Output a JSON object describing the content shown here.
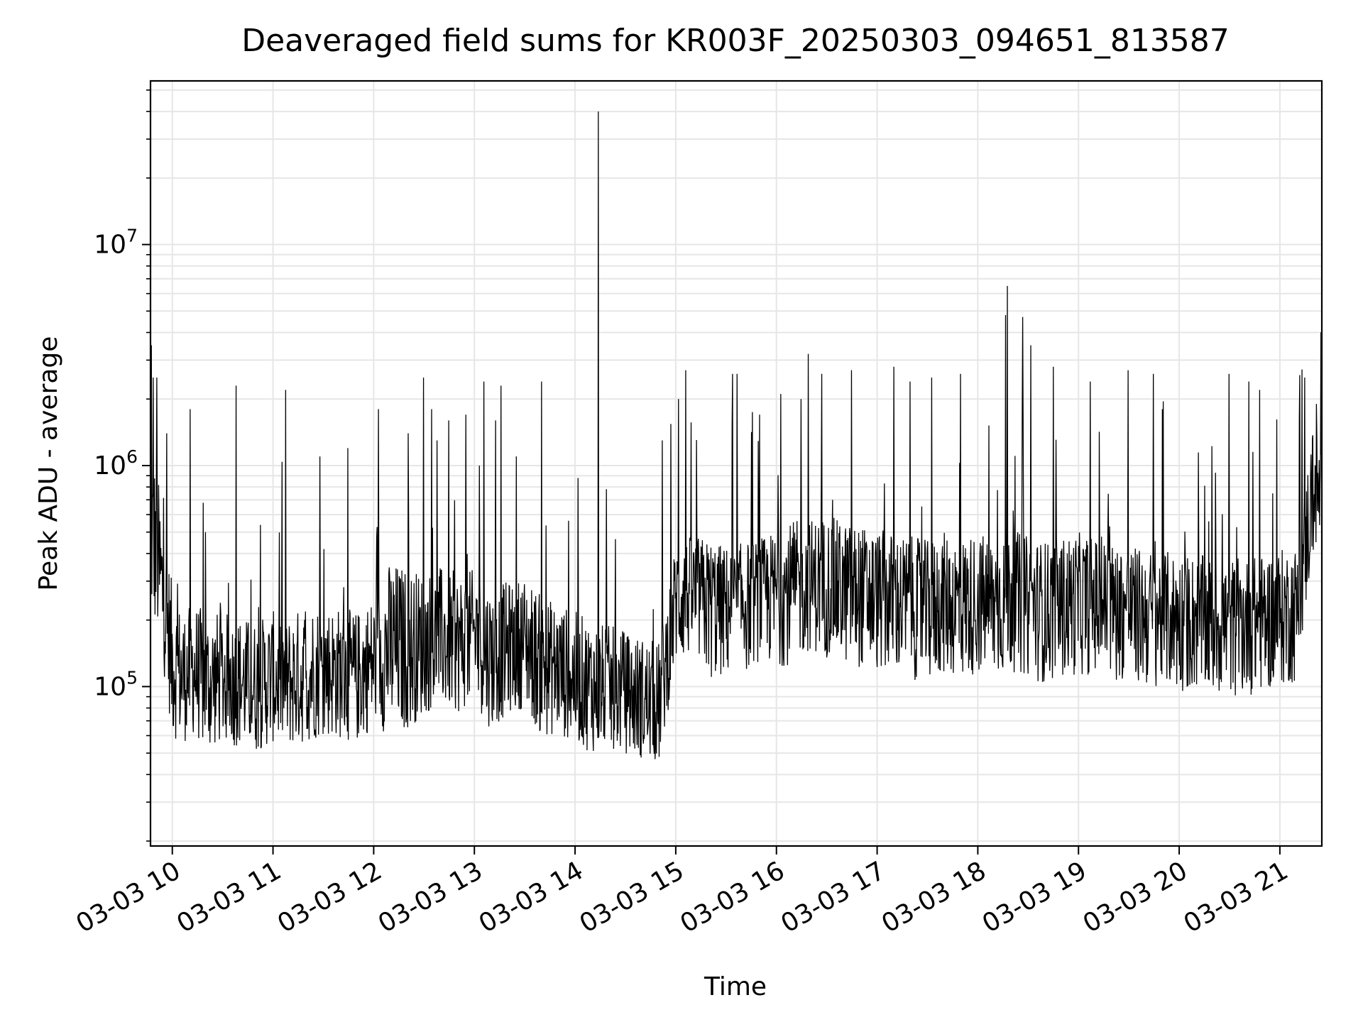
{
  "chart_data": {
    "type": "line",
    "title": "Deaveraged field sums for KR003F_20250303_094651_813587",
    "xlabel": "Time",
    "ylabel": "Peak ADU - average",
    "y_scale": "log",
    "ylim": [
      19000,
      55000000
    ],
    "xlim": [
      "03-03 09:47",
      "03-03 21:25"
    ],
    "grid": true,
    "line_color": "#000000",
    "x_ticks": [
      {
        "value": "03-03 10:00",
        "label": "03-03 10"
      },
      {
        "value": "03-03 11:00",
        "label": "03-03 11"
      },
      {
        "value": "03-03 12:00",
        "label": "03-03 12"
      },
      {
        "value": "03-03 13:00",
        "label": "03-03 13"
      },
      {
        "value": "03-03 14:00",
        "label": "03-03 14"
      },
      {
        "value": "03-03 15:00",
        "label": "03-03 15"
      },
      {
        "value": "03-03 16:00",
        "label": "03-03 16"
      },
      {
        "value": "03-03 17:00",
        "label": "03-03 17"
      },
      {
        "value": "03-03 18:00",
        "label": "03-03 18"
      },
      {
        "value": "03-03 19:00",
        "label": "03-03 19"
      },
      {
        "value": "03-03 20:00",
        "label": "03-03 20"
      },
      {
        "value": "03-03 21:00",
        "label": "03-03 21"
      }
    ],
    "y_ticks": [
      {
        "value": 100000,
        "base": "10",
        "exp": "5"
      },
      {
        "value": 1000000,
        "base": "10",
        "exp": "6"
      },
      {
        "value": 10000000,
        "base": "10",
        "exp": "7"
      }
    ],
    "series": [
      {
        "x": [
          "03-03 09:47",
          "03-03 09:53",
          "03-03 10:00",
          "03-03 10:06",
          "03-03 10:13",
          "03-03 10:20",
          "03-03 10:30",
          "03-03 10:40",
          "03-03 10:50",
          "03-03 11:00",
          "03-03 11:10",
          "03-03 11:20",
          "03-03 11:30",
          "03-03 11:40",
          "03-03 11:50",
          "03-03 12:00",
          "03-03 12:10",
          "03-03 12:20",
          "03-03 12:30",
          "03-03 12:40",
          "03-03 12:50",
          "03-03 13:00",
          "03-03 13:10",
          "03-03 13:20",
          "03-03 13:30",
          "03-03 13:40",
          "03-03 13:50",
          "03-03 14:00",
          "03-03 14:10",
          "03-03 14:20",
          "03-03 14:30",
          "03-03 14:40",
          "03-03 14:50",
          "03-03 15:00",
          "03-03 15:10",
          "03-03 15:20",
          "03-03 15:30",
          "03-03 15:40",
          "03-03 15:50",
          "03-03 16:00",
          "03-03 16:10",
          "03-03 16:20",
          "03-03 16:30",
          "03-03 16:40",
          "03-03 16:50",
          "03-03 17:00",
          "03-03 17:10",
          "03-03 17:20",
          "03-03 17:30",
          "03-03 17:40",
          "03-03 17:50",
          "03-03 18:00",
          "03-03 18:10",
          "03-03 18:20",
          "03-03 18:30",
          "03-03 18:40",
          "03-03 18:50",
          "03-03 19:00",
          "03-03 19:10",
          "03-03 19:20",
          "03-03 19:30",
          "03-03 19:40",
          "03-03 19:50",
          "03-03 20:00",
          "03-03 20:10",
          "03-03 20:20",
          "03-03 20:30",
          "03-03 20:40",
          "03-03 20:50",
          "03-03 21:00",
          "03-03 21:10",
          "03-03 21:20",
          "03-03 21:25"
        ],
        "y": [
          500000,
          300000,
          130000,
          110000,
          120000,
          100000,
          110000,
          105000,
          100000,
          110000,
          105000,
          110000,
          120000,
          115000,
          110000,
          130000,
          150000,
          140000,
          150000,
          160000,
          150000,
          170000,
          140000,
          150000,
          160000,
          130000,
          120000,
          110000,
          100000,
          95000,
          90000,
          85000,
          80000,
          250000,
          270000,
          260000,
          240000,
          250000,
          260000,
          270000,
          280000,
          290000,
          300000,
          280000,
          270000,
          260000,
          250000,
          240000,
          230000,
          250000,
          240000,
          250000,
          240000,
          260000,
          240000,
          230000,
          240000,
          250000,
          250000,
          240000,
          230000,
          220000,
          220000,
          210000,
          210000,
          200000,
          200000,
          200000,
          210000,
          220000,
          230000,
          800000,
          700000
        ],
        "noise_low": [
          0.4,
          0.5,
          0.45,
          0.5,
          0.5,
          0.5,
          0.5,
          0.5,
          0.5,
          0.5,
          0.5,
          0.5,
          0.5,
          0.5,
          0.5,
          0.5,
          0.4,
          0.45,
          0.5,
          0.5,
          0.5,
          0.5,
          0.45,
          0.5,
          0.5,
          0.45,
          0.5,
          0.5,
          0.5,
          0.55,
          0.55,
          0.55,
          0.55,
          0.5,
          0.5,
          0.4,
          0.45,
          0.45,
          0.5,
          0.45,
          0.45,
          0.5,
          0.45,
          0.45,
          0.45,
          0.45,
          0.45,
          0.45,
          0.45,
          0.45,
          0.45,
          0.45,
          0.45,
          0.45,
          0.45,
          0.45,
          0.45,
          0.45,
          0.45,
          0.45,
          0.45,
          0.45,
          0.45,
          0.45,
          0.45,
          0.45,
          0.45,
          0.45,
          0.45,
          0.45,
          0.45,
          0.5,
          0.6
        ],
        "noise_high": [
          3.0,
          2.5,
          2.2,
          2.0,
          2.0,
          2.2,
          2.0,
          2.0,
          2.0,
          2.0,
          2.0,
          2.2,
          2.0,
          2.0,
          2.0,
          2.0,
          2.5,
          2.5,
          2.2,
          2.2,
          2.2,
          2.0,
          2.0,
          2.0,
          2.0,
          2.0,
          2.0,
          2.0,
          2.0,
          2.0,
          2.0,
          2.0,
          2.0,
          1.8,
          1.8,
          1.8,
          1.8,
          1.8,
          1.8,
          1.9,
          2.0,
          2.0,
          2.0,
          2.0,
          2.0,
          2.0,
          2.0,
          2.0,
          2.0,
          2.0,
          2.0,
          2.0,
          2.0,
          2.0,
          2.0,
          2.0,
          2.0,
          2.0,
          1.9,
          1.9,
          1.9,
          1.9,
          1.9,
          1.9,
          1.9,
          1.9,
          1.9,
          1.9,
          1.9,
          1.9,
          1.9,
          2.0,
          1.8
        ]
      }
    ],
    "spikes": [
      {
        "x": "03-03 09:48",
        "y": 3500000
      },
      {
        "x": "03-03 09:49",
        "y": 2500000
      },
      {
        "x": "03-03 09:51",
        "y": 2500000
      },
      {
        "x": "03-03 09:57",
        "y": 1400000
      },
      {
        "x": "03-03 10:11",
        "y": 1800000
      },
      {
        "x": "03-03 10:20",
        "y": 500000
      },
      {
        "x": "03-03 10:38",
        "y": 2300000
      },
      {
        "x": "03-03 11:08",
        "y": 2200000
      },
      {
        "x": "03-03 11:28",
        "y": 1100000
      },
      {
        "x": "03-03 11:45",
        "y": 1200000
      },
      {
        "x": "03-03 12:03",
        "y": 1800000
      },
      {
        "x": "03-03 12:21",
        "y": 1400000
      },
      {
        "x": "03-03 12:30",
        "y": 2500000
      },
      {
        "x": "03-03 12:35",
        "y": 1800000
      },
      {
        "x": "03-03 12:38",
        "y": 1300000
      },
      {
        "x": "03-03 12:45",
        "y": 1600000
      },
      {
        "x": "03-03 12:55",
        "y": 1700000
      },
      {
        "x": "03-03 13:03",
        "y": 1000000
      },
      {
        "x": "03-03 13:06",
        "y": 2400000
      },
      {
        "x": "03-03 13:13",
        "y": 1600000
      },
      {
        "x": "03-03 13:16",
        "y": 2300000
      },
      {
        "x": "03-03 13:25",
        "y": 1100000
      },
      {
        "x": "03-03 13:40",
        "y": 2400000
      },
      {
        "x": "03-03 14:14",
        "y": 40000000
      },
      {
        "x": "03-03 14:52",
        "y": 1300000
      },
      {
        "x": "03-03 15:02",
        "y": 2000000
      },
      {
        "x": "03-03 15:06",
        "y": 2700000
      },
      {
        "x": "03-03 15:34",
        "y": 2600000
      },
      {
        "x": "03-03 15:37",
        "y": 2600000
      },
      {
        "x": "03-03 15:50",
        "y": 1700000
      },
      {
        "x": "03-03 16:15",
        "y": 2000000
      },
      {
        "x": "03-03 16:19",
        "y": 3200000
      },
      {
        "x": "03-03 16:27",
        "y": 2600000
      },
      {
        "x": "03-03 16:45",
        "y": 2700000
      },
      {
        "x": "03-03 17:10",
        "y": 2800000
      },
      {
        "x": "03-03 17:20",
        "y": 2400000
      },
      {
        "x": "03-03 17:33",
        "y": 2500000
      },
      {
        "x": "03-03 17:50",
        "y": 2600000
      },
      {
        "x": "03-03 18:17",
        "y": 4800000
      },
      {
        "x": "03-03 18:18",
        "y": 6500000
      },
      {
        "x": "03-03 18:27",
        "y": 4700000
      },
      {
        "x": "03-03 18:32",
        "y": 3500000
      },
      {
        "x": "03-03 18:45",
        "y": 2800000
      },
      {
        "x": "03-03 19:07",
        "y": 2400000
      },
      {
        "x": "03-03 19:30",
        "y": 2700000
      },
      {
        "x": "03-03 19:45",
        "y": 2600000
      },
      {
        "x": "03-03 19:50",
        "y": 1800000
      },
      {
        "x": "03-03 20:30",
        "y": 2600000
      },
      {
        "x": "03-03 20:42",
        "y": 2400000
      },
      {
        "x": "03-03 20:48",
        "y": 2200000
      },
      {
        "x": "03-03 21:15",
        "y": 2500000
      },
      {
        "x": "03-03 21:22",
        "y": 1900000
      }
    ]
  }
}
